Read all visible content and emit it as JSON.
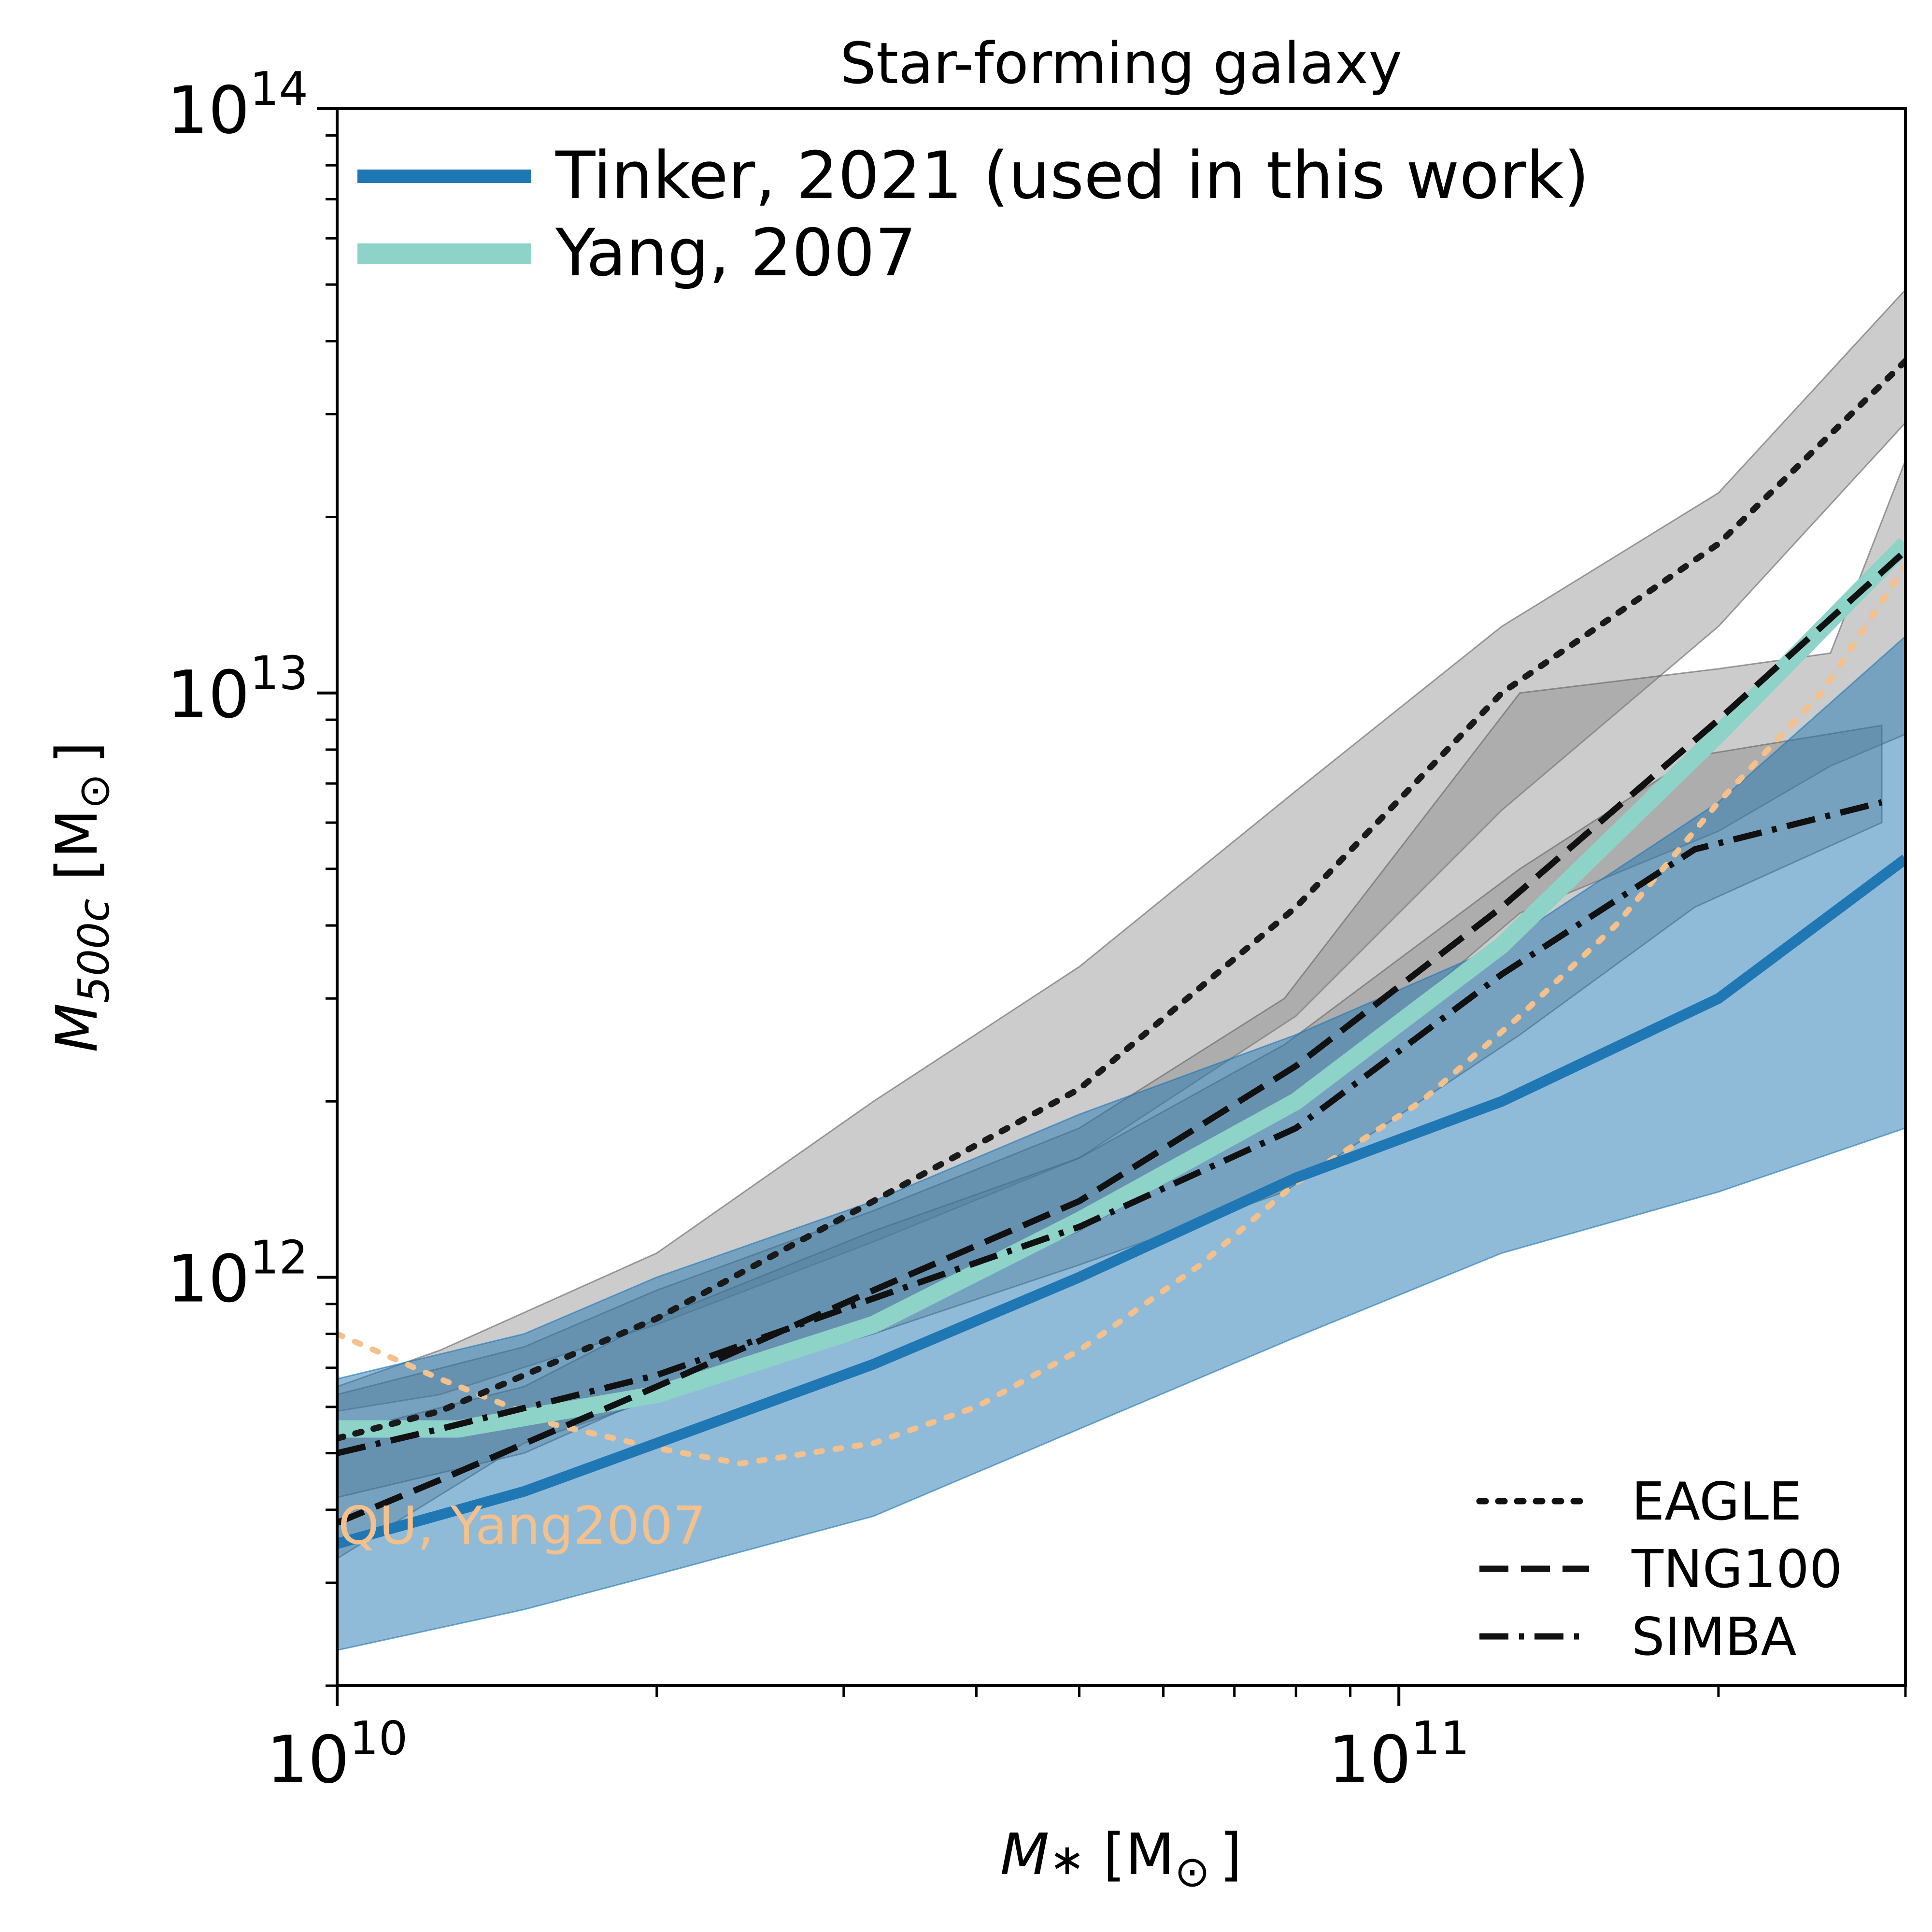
{
  "chart_data": {
    "type": "line",
    "title": "Star-forming galaxy",
    "xlabel": {
      "main": "M",
      "sub": "∗",
      "unit": " [M",
      "odot": "⊙",
      "close": "]"
    },
    "ylabel": {
      "main": "M",
      "sub": "500c",
      "unit": " [M",
      "odot": "⊙",
      "close": "]"
    },
    "x_scale": "log",
    "y_scale": "log",
    "xlim": [
      10000000000.0,
      300000000000.0
    ],
    "ylim": [
      200000000000.0,
      100000000000000.0
    ],
    "x_ticks": [
      {
        "value": 10000000000.0,
        "base": "10",
        "exp": "10"
      },
      {
        "value": 100000000000.0,
        "base": "10",
        "exp": "11"
      }
    ],
    "y_ticks": [
      {
        "value": 1000000000000.0,
        "base": "10",
        "exp": "12"
      },
      {
        "value": 10000000000000.0,
        "base": "10",
        "exp": "13"
      },
      {
        "value": 100000000000000.0,
        "base": "10",
        "exp": "14"
      }
    ],
    "annotation": {
      "text": "QU, Yang2007",
      "color": "#f4c08c"
    },
    "legend_top": [
      {
        "label": "Tinker, 2021 (used in this work)",
        "color": "#1f77b4"
      },
      {
        "label": "Yang, 2007",
        "color": "#8dd3c7"
      }
    ],
    "legend_bottom": [
      {
        "label": "EAGLE",
        "style": "dotted"
      },
      {
        "label": "TNG100",
        "style": "dashed"
      },
      {
        "label": "SIMBA",
        "style": "dashdot"
      }
    ],
    "bands": [
      {
        "kind": "gray",
        "x": [
          10000000000.0,
          12500000000.0,
          20000000000.0,
          32000000000.0,
          50000000000.0,
          80000000000.0,
          125000000000.0,
          200000000000.0,
          300000000000.0
        ],
        "low": [
          590000000000.0,
          630000000000.0,
          830000000000.0,
          1150000000000.0,
          1600000000000.0,
          2800000000000.0,
          6300000000000.0,
          13000000000000.0,
          29000000000000.0
        ],
        "high": [
          650000000000.0,
          750000000000.0,
          1100000000000.0,
          2000000000000.0,
          3400000000000.0,
          6800000000000.0,
          13000000000000.0,
          22000000000000.0,
          49000000000000.0
        ]
      },
      {
        "kind": "gray",
        "x": [
          10000000000.0,
          15000000000.0,
          20000000000.0,
          32000000000.0,
          50000000000.0,
          78000000000.0,
          130000000000.0,
          200000000000.0,
          255000000000.0,
          300000000000.0
        ],
        "low": [
          330000000000.0,
          520000000000.0,
          620000000000.0,
          850000000000.0,
          1200000000000.0,
          1900000000000.0,
          4200000000000.0,
          5800000000000.0,
          7500000000000.0,
          8500000000000.0
        ],
        "high": [
          630000000000.0,
          760000000000.0,
          950000000000.0,
          1300000000000.0,
          1800000000000.0,
          3000000000000.0,
          10000000000000.0,
          11000000000000.0,
          11700000000000.0,
          25000000000000.0
        ]
      },
      {
        "kind": "gray",
        "x": [
          10000000000.0,
          15000000000.0,
          20000000000.0,
          32000000000.0,
          50000000000.0,
          78000000000.0,
          130000000000.0,
          190000000000.0,
          285000000000.0
        ],
        "low": [
          420000000000.0,
          500000000000.0,
          630000000000.0,
          800000000000.0,
          1050000000000.0,
          1400000000000.0,
          2600000000000.0,
          4300000000000.0,
          6000000000000.0
        ],
        "high": [
          540000000000.0,
          650000000000.0,
          850000000000.0,
          1200000000000.0,
          1600000000000.0,
          2500000000000.0,
          5000000000000.0,
          7800000000000.0,
          8800000000000.0
        ]
      },
      {
        "kind": "blue",
        "x": [
          10000000000.0,
          15000000000.0,
          20000000000.0,
          32000000000.0,
          50000000000.0,
          80000000000.0,
          125000000000.0,
          200000000000.0,
          300000000000.0
        ],
        "low": [
          230000000000.0,
          270000000000.0,
          310000000000.0,
          390000000000.0,
          550000000000.0,
          790000000000.0,
          1100000000000.0,
          1400000000000.0,
          1800000000000.0
        ],
        "high": [
          670000000000.0,
          800000000000.0,
          1000000000000.0,
          1350000000000.0,
          1900000000000.0,
          2600000000000.0,
          3700000000000.0,
          6500000000000.0,
          12500000000000.0
        ]
      }
    ],
    "series": [
      {
        "name": "EAGLE",
        "style": "dotted",
        "x": [
          10000000000.0,
          12500000000.0,
          20000000000.0,
          32000000000.0,
          50000000000.0,
          80000000000.0,
          125000000000.0,
          200000000000.0,
          300000000000.0
        ],
        "y": [
          530000000000.0,
          590000000000.0,
          850000000000.0,
          1350000000000.0,
          2100000000000.0,
          4300000000000.0,
          10000000000000.0,
          18000000000000.0,
          37000000000000.0
        ]
      },
      {
        "name": "TNG100",
        "style": "dashed",
        "x": [
          10000000000.0,
          12500000000.0,
          20000000000.0,
          32000000000.0,
          50000000000.0,
          80000000000.0,
          125000000000.0,
          200000000000.0,
          300000000000.0
        ],
        "y": [
          380000000000.0,
          450000000000.0,
          650000000000.0,
          950000000000.0,
          1350000000000.0,
          2300000000000.0,
          4300000000000.0,
          9000000000000.0,
          17500000000000.0
        ]
      },
      {
        "name": "SIMBA",
        "style": "dashdot",
        "x": [
          10000000000.0,
          12500000000.0,
          20000000000.0,
          32000000000.0,
          50000000000.0,
          80000000000.0,
          125000000000.0,
          190000000000.0,
          285000000000.0
        ],
        "y": [
          500000000000.0,
          550000000000.0,
          680000000000.0,
          920000000000.0,
          1220000000000.0,
          1800000000000.0,
          3300000000000.0,
          5400000000000.0,
          6500000000000.0
        ]
      },
      {
        "name": "Tinker, 2021 (used in this work)",
        "style": "solid",
        "x": [
          10000000000.0,
          15000000000.0,
          20000000000.0,
          32000000000.0,
          50000000000.0,
          80000000000.0,
          125000000000.0,
          200000000000.0,
          300000000000.0
        ],
        "y": [
          350000000000.0,
          430000000000.0,
          520000000000.0,
          710000000000.0,
          1000000000000.0,
          1480000000000.0,
          2000000000000.0,
          3000000000000.0,
          5200000000000.0
        ]
      },
      {
        "name": "Yang, 2007",
        "style": "solid",
        "x": [
          10000000000.0,
          13000000000.0,
          20000000000.0,
          32000000000.0,
          50000000000.0,
          80000000000.0,
          125000000000.0,
          200000000000.0,
          300000000000.0
        ],
        "y": [
          550000000000.0,
          550000000000.0,
          630000000000.0,
          830000000000.0,
          1250000000000.0,
          2000000000000.0,
          3700000000000.0,
          8500000000000.0,
          18000000000000.0
        ]
      },
      {
        "name": "QU, Yang2007",
        "style": "dotted",
        "x": [
          10000000000.0,
          12500000000.0,
          16000000000.0,
          20000000000.0,
          24000000000.0,
          32000000000.0,
          40000000000.0,
          50000000000.0,
          65000000000.0,
          80000000000.0,
          105000000000.0,
          130000000000.0,
          160000000000.0,
          200000000000.0,
          250000000000.0,
          300000000000.0
        ],
        "y": [
          800000000000.0,
          670000000000.0,
          560000000000.0,
          510000000000.0,
          480000000000.0,
          520000000000.0,
          600000000000.0,
          750000000000.0,
          1050000000000.0,
          1450000000000.0,
          2000000000000.0,
          2800000000000.0,
          4000000000000.0,
          6500000000000.0,
          10000000000000.0,
          16500000000000.0
        ]
      }
    ]
  }
}
